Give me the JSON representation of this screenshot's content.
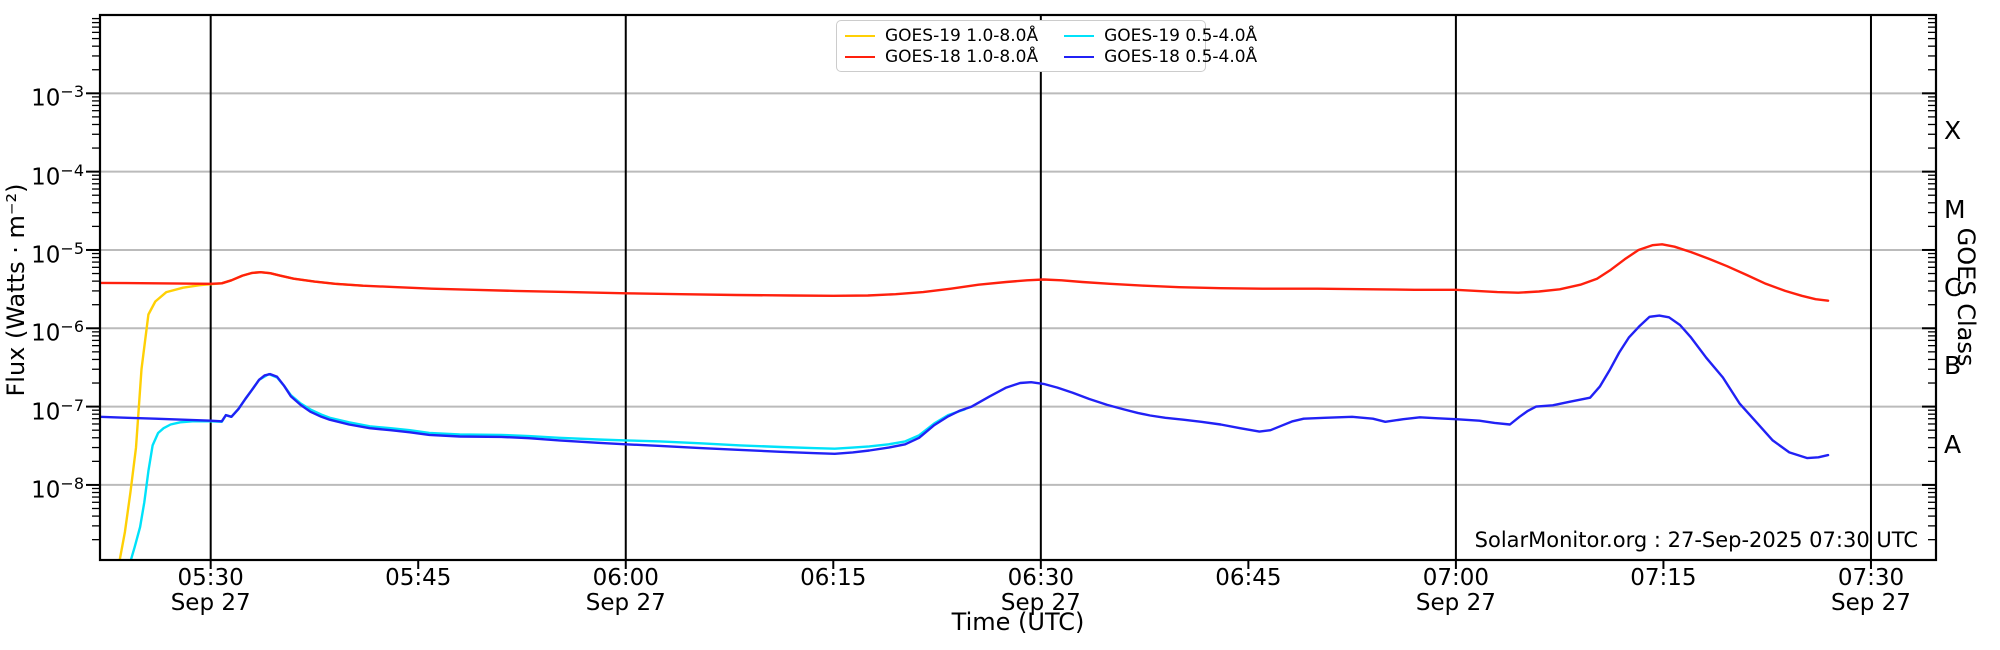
{
  "colors": {
    "goes19_long": "#ffd005",
    "goes18_long": "#ff200d",
    "goes19_short": "#00e2fa",
    "goes18_short": "#2121f5",
    "hgrid": "#bbbbbb",
    "vgrid": "#000000",
    "spine": "#000000",
    "text": "#000000",
    "legend_border": "#cccccc"
  },
  "chart_data": {
    "type": "line",
    "xlabel": "Time (UTC)",
    "ylabel": "Flux (Watts · m⁻²)",
    "ylabel_right": "GOES Class",
    "watermark": "SolarMonitor.org : 27-Sep-2025 07:30 UTC",
    "grid": "on",
    "legend_position": "top-center",
    "axes": {
      "x": {
        "t_min_minutes": 322.0,
        "t_max_minutes": 454.7,
        "ticks": [
          {
            "t": 330,
            "label": "05:30",
            "date": "Sep 27",
            "major": true
          },
          {
            "t": 345,
            "label": "05:45",
            "date": "",
            "major": false
          },
          {
            "t": 360,
            "label": "06:00",
            "date": "Sep 27",
            "major": true
          },
          {
            "t": 375,
            "label": "06:15",
            "date": "",
            "major": false
          },
          {
            "t": 390,
            "label": "06:30",
            "date": "Sep 27",
            "major": true
          },
          {
            "t": 405,
            "label": "06:45",
            "date": "",
            "major": false
          },
          {
            "t": 420,
            "label": "07:00",
            "date": "Sep 27",
            "major": true
          },
          {
            "t": 435,
            "label": "07:15",
            "date": "",
            "major": false
          },
          {
            "t": 450,
            "label": "07:30",
            "date": "Sep 27",
            "major": true
          }
        ]
      },
      "y": {
        "v_min": 1.1e-09,
        "v_max": 0.01,
        "labeled_decades": [
          -3,
          -4,
          -5,
          -6,
          -7,
          -8
        ],
        "minor_tick_decades": [
          -9,
          -8,
          -7,
          -6,
          -5,
          -4,
          -3
        ]
      },
      "right": {
        "classes": [
          {
            "label": "X",
            "exp": -3.5
          },
          {
            "label": "M",
            "exp": -4.5
          },
          {
            "label": "C",
            "exp": -5.5
          },
          {
            "label": "B",
            "exp": -6.5
          },
          {
            "label": "A",
            "exp": -7.5
          }
        ]
      }
    },
    "series": [
      {
        "name": "GOES-19 1.0-8.0Å",
        "color_key": "goes19_long",
        "points": [
          [
            323.4,
            1.05e-09
          ],
          [
            323.8,
            2.5e-09
          ],
          [
            324.2,
            8e-09
          ],
          [
            324.6,
            3e-08
          ],
          [
            325.0,
            3e-07
          ],
          [
            325.5,
            1.5e-06
          ],
          [
            326.0,
            2.2e-06
          ],
          [
            326.8,
            2.9e-06
          ],
          [
            328.0,
            3.3e-06
          ],
          [
            329.2,
            3.55e-06
          ],
          [
            330.0,
            3.65e-06
          ],
          [
            330.8,
            3.75e-06
          ],
          [
            331.5,
            4.1e-06
          ],
          [
            332.3,
            4.7e-06
          ],
          [
            333.0,
            5.1e-06
          ],
          [
            333.6,
            5.2e-06
          ],
          [
            334.3,
            5.05e-06
          ],
          [
            335.0,
            4.7e-06
          ],
          [
            336.0,
            4.3e-06
          ],
          [
            337.5,
            3.95e-06
          ],
          [
            339.0,
            3.7e-06
          ],
          [
            341.0,
            3.5e-06
          ]
        ]
      },
      {
        "name": "GOES-18 1.0-8.0Å",
        "color_key": "goes18_long",
        "points": [
          [
            322.0,
            3.8e-06
          ],
          [
            326.0,
            3.75e-06
          ],
          [
            330.0,
            3.7e-06
          ],
          [
            330.8,
            3.75e-06
          ],
          [
            331.5,
            4.1e-06
          ],
          [
            332.3,
            4.7e-06
          ],
          [
            333.0,
            5.1e-06
          ],
          [
            333.6,
            5.2e-06
          ],
          [
            334.3,
            5.05e-06
          ],
          [
            335.0,
            4.7e-06
          ],
          [
            336.0,
            4.3e-06
          ],
          [
            337.5,
            3.95e-06
          ],
          [
            339.0,
            3.7e-06
          ],
          [
            341.0,
            3.5e-06
          ],
          [
            343.5,
            3.35e-06
          ],
          [
            346.0,
            3.2e-06
          ],
          [
            349.0,
            3.1e-06
          ],
          [
            352.0,
            3e-06
          ],
          [
            356.0,
            2.9e-06
          ],
          [
            360.0,
            2.8e-06
          ],
          [
            364.0,
            2.72e-06
          ],
          [
            368.0,
            2.66e-06
          ],
          [
            372.0,
            2.62e-06
          ],
          [
            375.0,
            2.6e-06
          ],
          [
            377.5,
            2.62e-06
          ],
          [
            379.5,
            2.72e-06
          ],
          [
            381.5,
            2.9e-06
          ],
          [
            383.5,
            3.2e-06
          ],
          [
            385.5,
            3.6e-06
          ],
          [
            387.5,
            3.9e-06
          ],
          [
            389.0,
            4.1e-06
          ],
          [
            390.2,
            4.2e-06
          ],
          [
            391.5,
            4.1e-06
          ],
          [
            393.0,
            3.9e-06
          ],
          [
            395.0,
            3.7e-06
          ],
          [
            397.5,
            3.5e-06
          ],
          [
            400.0,
            3.35e-06
          ],
          [
            403.0,
            3.25e-06
          ],
          [
            406.0,
            3.2e-06
          ],
          [
            410.0,
            3.2e-06
          ],
          [
            414.0,
            3.15e-06
          ],
          [
            417.0,
            3.1e-06
          ],
          [
            420.0,
            3.1e-06
          ],
          [
            421.5,
            3e-06
          ],
          [
            423.0,
            2.9e-06
          ],
          [
            424.5,
            2.85e-06
          ],
          [
            426.0,
            2.95e-06
          ],
          [
            427.5,
            3.15e-06
          ],
          [
            429.0,
            3.6e-06
          ],
          [
            430.2,
            4.3e-06
          ],
          [
            431.2,
            5.6e-06
          ],
          [
            432.2,
            7.6e-06
          ],
          [
            433.2,
            1e-05
          ],
          [
            434.2,
            1.15e-05
          ],
          [
            434.9,
            1.18e-05
          ],
          [
            435.8,
            1.1e-05
          ],
          [
            437.0,
            9.4e-06
          ],
          [
            438.3,
            7.7e-06
          ],
          [
            439.6,
            6.2e-06
          ],
          [
            441.0,
            4.8e-06
          ],
          [
            442.4,
            3.7e-06
          ],
          [
            443.8,
            3e-06
          ],
          [
            445.0,
            2.6e-06
          ],
          [
            446.0,
            2.35e-06
          ],
          [
            446.9,
            2.25e-06
          ]
        ]
      },
      {
        "name": "GOES-19 0.5-4.0Å",
        "color_key": "goes19_short",
        "points": [
          [
            324.2,
            1.05e-09
          ],
          [
            324.5,
            1.6e-09
          ],
          [
            324.9,
            2.9e-09
          ],
          [
            325.2,
            6e-09
          ],
          [
            325.5,
            1.5e-08
          ],
          [
            325.8,
            3.2e-08
          ],
          [
            326.2,
            4.6e-08
          ],
          [
            326.6,
            5.3e-08
          ],
          [
            327.1,
            5.9e-08
          ],
          [
            327.8,
            6.3e-08
          ],
          [
            328.7,
            6.5e-08
          ],
          [
            330.0,
            6.5e-08
          ],
          [
            330.8,
            6.4e-08
          ],
          [
            331.1,
            7.8e-08
          ],
          [
            331.5,
            7.4e-08
          ],
          [
            332.0,
            9.3e-08
          ],
          [
            332.5,
            1.25e-07
          ],
          [
            333.0,
            1.65e-07
          ],
          [
            333.5,
            2.2e-07
          ],
          [
            334.2,
            2.6e-07
          ],
          [
            334.8,
            2.35e-07
          ],
          [
            335.3,
            1.85e-07
          ],
          [
            335.8,
            1.4e-07
          ],
          [
            336.5,
            1.1e-07
          ],
          [
            337.2,
            9.2e-08
          ],
          [
            338.0,
            7.9e-08
          ],
          [
            338.6,
            7.2e-08
          ],
          [
            340.0,
            6.3e-08
          ],
          [
            341.5,
            5.6e-08
          ],
          [
            343.0,
            5.3e-08
          ],
          [
            344.4,
            5e-08
          ],
          [
            345.8,
            4.6e-08
          ],
          [
            348.0,
            4.4e-08
          ],
          [
            351.0,
            4.35e-08
          ],
          [
            353.0,
            4.2e-08
          ],
          [
            355.2,
            4e-08
          ],
          [
            358.0,
            3.8e-08
          ],
          [
            360.0,
            3.7e-08
          ],
          [
            362.5,
            3.6e-08
          ],
          [
            365.4,
            3.4e-08
          ],
          [
            368.3,
            3.2e-08
          ],
          [
            371.2,
            3.05e-08
          ],
          [
            373.5,
            2.95e-08
          ],
          [
            375.1,
            2.9e-08
          ],
          [
            376.4,
            3e-08
          ],
          [
            377.6,
            3.1e-08
          ],
          [
            379.0,
            3.3e-08
          ],
          [
            380.2,
            3.6e-08
          ],
          [
            381.2,
            4.3e-08
          ],
          [
            382.3,
            6.1e-08
          ],
          [
            383.3,
            7.8e-08
          ],
          [
            384.5,
            9.2e-08
          ]
        ]
      },
      {
        "name": "GOES-18 0.5-4.0Å",
        "color_key": "goes18_short",
        "points": [
          [
            322.0,
            7.4e-08
          ],
          [
            324.0,
            7.2e-08
          ],
          [
            326.0,
            7e-08
          ],
          [
            328.0,
            6.8e-08
          ],
          [
            330.0,
            6.6e-08
          ],
          [
            330.8,
            6.5e-08
          ],
          [
            331.1,
            7.8e-08
          ],
          [
            331.5,
            7.4e-08
          ],
          [
            332.0,
            9.3e-08
          ],
          [
            332.5,
            1.25e-07
          ],
          [
            333.0,
            1.65e-07
          ],
          [
            333.5,
            2.2e-07
          ],
          [
            333.9,
            2.5e-07
          ],
          [
            334.3,
            2.6e-07
          ],
          [
            334.8,
            2.4e-07
          ],
          [
            335.3,
            1.85e-07
          ],
          [
            335.8,
            1.35e-07
          ],
          [
            336.5,
            1.05e-07
          ],
          [
            337.2,
            8.6e-08
          ],
          [
            338.0,
            7.4e-08
          ],
          [
            338.6,
            6.8e-08
          ],
          [
            340.0,
            5.9e-08
          ],
          [
            341.5,
            5.3e-08
          ],
          [
            343.0,
            5e-08
          ],
          [
            344.4,
            4.7e-08
          ],
          [
            345.8,
            4.35e-08
          ],
          [
            348.0,
            4.15e-08
          ],
          [
            351.0,
            4.1e-08
          ],
          [
            353.0,
            3.95e-08
          ],
          [
            355.2,
            3.7e-08
          ],
          [
            358.0,
            3.45e-08
          ],
          [
            360.0,
            3.3e-08
          ],
          [
            362.5,
            3.15e-08
          ],
          [
            365.4,
            2.95e-08
          ],
          [
            368.3,
            2.8e-08
          ],
          [
            371.2,
            2.65e-08
          ],
          [
            373.5,
            2.55e-08
          ],
          [
            375.1,
            2.5e-08
          ],
          [
            376.4,
            2.6e-08
          ],
          [
            377.6,
            2.75e-08
          ],
          [
            379.0,
            3e-08
          ],
          [
            380.2,
            3.3e-08
          ],
          [
            381.2,
            4e-08
          ],
          [
            382.3,
            5.8e-08
          ],
          [
            383.3,
            7.5e-08
          ],
          [
            384.1,
            8.8e-08
          ],
          [
            385.0,
            1e-07
          ],
          [
            386.3,
            1.35e-07
          ],
          [
            387.5,
            1.75e-07
          ],
          [
            388.5,
            2e-07
          ],
          [
            389.3,
            2.05e-07
          ],
          [
            390.2,
            1.95e-07
          ],
          [
            391.2,
            1.75e-07
          ],
          [
            392.3,
            1.5e-07
          ],
          [
            393.5,
            1.25e-07
          ],
          [
            394.8,
            1.05e-07
          ],
          [
            396.0,
            9.2e-08
          ],
          [
            397.0,
            8.3e-08
          ],
          [
            397.9,
            7.7e-08
          ],
          [
            399.0,
            7.2e-08
          ],
          [
            400.3,
            6.8e-08
          ],
          [
            401.6,
            6.4e-08
          ],
          [
            403.0,
            5.9e-08
          ],
          [
            404.4,
            5.3e-08
          ],
          [
            405.8,
            4.8e-08
          ],
          [
            406.6,
            5e-08
          ],
          [
            407.4,
            5.7e-08
          ],
          [
            408.2,
            6.5e-08
          ],
          [
            409.0,
            7e-08
          ],
          [
            410.5,
            7.2e-08
          ],
          [
            412.5,
            7.4e-08
          ],
          [
            414.0,
            7e-08
          ],
          [
            414.9,
            6.4e-08
          ],
          [
            416.2,
            6.9e-08
          ],
          [
            417.4,
            7.3e-08
          ],
          [
            418.7,
            7.1e-08
          ],
          [
            420.0,
            6.9e-08
          ],
          [
            421.7,
            6.6e-08
          ],
          [
            422.8,
            6.2e-08
          ],
          [
            423.9,
            5.9e-08
          ],
          [
            424.6,
            7.4e-08
          ],
          [
            425.2,
            8.8e-08
          ],
          [
            425.8,
            1e-07
          ],
          [
            427.0,
            1.04e-07
          ],
          [
            428.2,
            1.15e-07
          ],
          [
            429.7,
            1.3e-07
          ],
          [
            430.4,
            1.8e-07
          ],
          [
            431.1,
            2.9e-07
          ],
          [
            431.8,
            4.9e-07
          ],
          [
            432.5,
            7.6e-07
          ],
          [
            433.3,
            1.08e-06
          ],
          [
            434.0,
            1.4e-06
          ],
          [
            434.7,
            1.45e-06
          ],
          [
            435.4,
            1.38e-06
          ],
          [
            436.2,
            1.1e-06
          ],
          [
            437.0,
            7.6e-07
          ],
          [
            438.1,
            4.2e-07
          ],
          [
            439.3,
            2.35e-07
          ],
          [
            440.5,
            1.1e-07
          ],
          [
            441.8,
            6.1e-08
          ],
          [
            442.9,
            3.7e-08
          ],
          [
            444.1,
            2.6e-08
          ],
          [
            445.4,
            2.2e-08
          ],
          [
            446.2,
            2.25e-08
          ],
          [
            446.9,
            2.4e-08
          ]
        ]
      }
    ]
  }
}
